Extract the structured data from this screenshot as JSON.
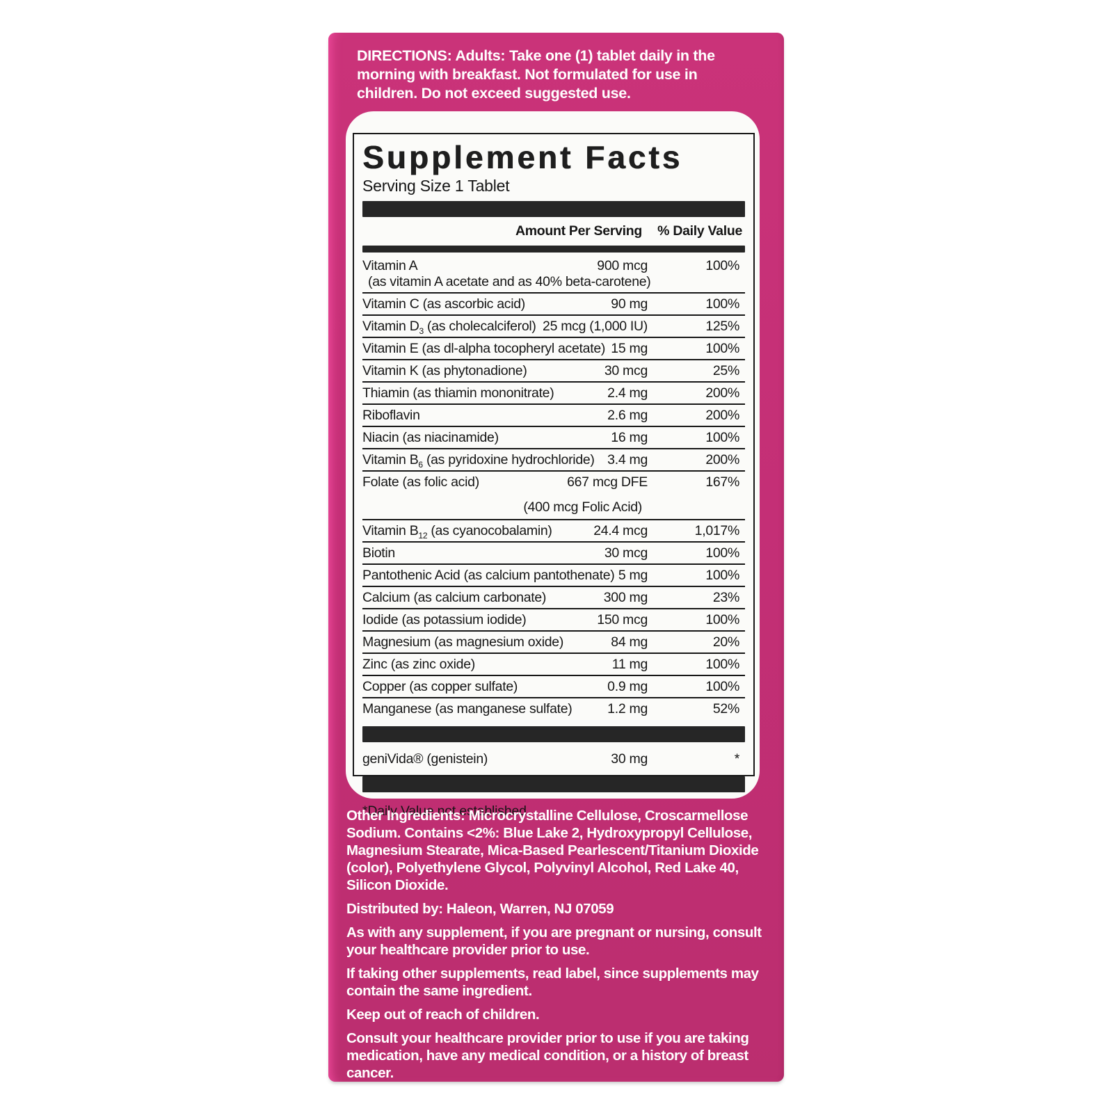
{
  "colors": {
    "panel_pink": "#c42f76",
    "panel_pink_highlight": "#ef4a9c",
    "bar_black": "#262626",
    "table_text": "#151515",
    "card_white": "#fbfbf9",
    "footer_text": "#ffffff"
  },
  "directions": {
    "text": "DIRECTIONS: Adults: Take one (1) tablet daily in the morning with breakfast. Not formulated for use in children. Do not exceed suggested use."
  },
  "supplement_facts": {
    "title": "Supplement Facts",
    "serving_size": "Serving Size 1 Tablet",
    "columns": {
      "amount": "Amount Per Serving",
      "daily_value": "% Daily Value"
    },
    "rows": [
      {
        "pre": "Vitamin A",
        "amount": "900 mcg",
        "dv": "100%",
        "note": "(as vitamin A acetate and as 40% beta-carotene)"
      },
      {
        "pre": "Vitamin C (as ascorbic acid)",
        "amount": "90 mg",
        "dv": "100%"
      },
      {
        "pre": "Vitamin D",
        "sub": "3",
        "post": " (as cholecalciferol)",
        "amount": "25 mcg (1,000 IU)",
        "dv": "125%"
      },
      {
        "pre": "Vitamin E (as dl-alpha tocopheryl acetate)",
        "amount": "15 mg",
        "dv": "100%"
      },
      {
        "pre": "Vitamin K (as phytonadione)",
        "amount": "30 mcg",
        "dv": "25%"
      },
      {
        "pre": "Thiamin (as thiamin mononitrate)",
        "amount": "2.4 mg",
        "dv": "200%"
      },
      {
        "pre": "Riboflavin",
        "amount": "2.6 mg",
        "dv": "200%"
      },
      {
        "pre": "Niacin (as niacinamide)",
        "amount": "16 mg",
        "dv": "100%"
      },
      {
        "pre": "Vitamin B",
        "sub": "6",
        "post": " (as pyridoxine hydrochloride)",
        "amount": "3.4 mg",
        "dv": "200%"
      },
      {
        "pre": "Folate (as folic acid)",
        "amount": "667 mcg DFE",
        "dv": "167%",
        "note2": "(400 mcg Folic Acid)"
      },
      {
        "pre": "Vitamin B",
        "sub": "12",
        "post": " (as cyanocobalamin)",
        "amount": "24.4 mcg",
        "dv": "1,017%"
      },
      {
        "pre": "Biotin",
        "amount": "30 mcg",
        "dv": "100%"
      },
      {
        "pre": "Pantothenic Acid (as calcium pantothenate)",
        "amount": "5 mg",
        "dv": "100%"
      },
      {
        "pre": "Calcium (as calcium carbonate)",
        "amount": "300 mg",
        "dv": "23%"
      },
      {
        "pre": "Iodide (as potassium iodide)",
        "amount": "150 mcg",
        "dv": "100%"
      },
      {
        "pre": "Magnesium (as magnesium oxide)",
        "amount": "84 mg",
        "dv": "20%"
      },
      {
        "pre": "Zinc (as zinc oxide)",
        "amount": "11 mg",
        "dv": "100%"
      },
      {
        "pre": "Copper (as copper sulfate)",
        "amount": "0.9 mg",
        "dv": "100%"
      },
      {
        "pre": "Manganese (as manganese sulfate)",
        "amount": "1.2 mg",
        "dv": "52%",
        "nb": true
      },
      {
        "t": "bar"
      },
      {
        "pre": "geniVida® (genistein)",
        "amount": "30 mg",
        "dv": "*",
        "nb": true
      },
      {
        "t": "bar"
      }
    ],
    "footnote": "*Daily Value not established."
  },
  "footer": {
    "paragraphs": [
      "Other Ingredients: Microcrystalline Cellulose, Croscarmellose Sodium. Contains <2%: Blue Lake 2, Hydroxypropyl Cellulose, Magnesium Stearate, Mica-Based Pearlescent/Titanium Dioxide (color), Polyethylene Glycol, Polyvinyl Alcohol, Red Lake 40, Silicon Dioxide.",
      "Distributed by: Haleon, Warren, NJ 07059",
      "As with any supplement, if you are pregnant or nursing, consult your healthcare provider prior to use.",
      "If taking other supplements, read label, since supplements may contain the same ingredient.",
      "Keep out of reach of children.",
      "Consult your healthcare provider prior to use if you are taking medication, have any medical condition, or a history of breast cancer."
    ]
  }
}
